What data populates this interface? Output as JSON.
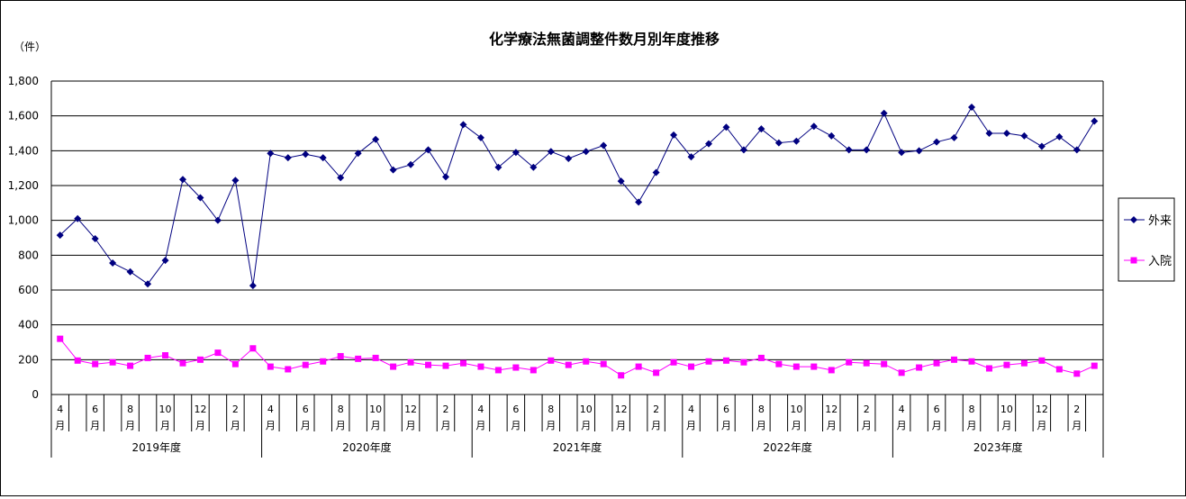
{
  "chart_data": {
    "type": "line",
    "title": "化学療法無菌調整件数月別年度推移",
    "ylabel": "（件）",
    "xlabel": "",
    "ylim": [
      0,
      1800
    ],
    "yticks": [
      "0",
      "200",
      "400",
      "600",
      "800",
      "1,000",
      "1,200",
      "1,400",
      "1,600",
      "1,800"
    ],
    "grid": true,
    "legend_position": "right",
    "month_ticks": [
      "4月",
      "",
      "6月",
      "",
      "8月",
      "",
      "10月",
      "",
      "12月",
      "",
      "2月",
      ""
    ],
    "fiscal_years": [
      "2019年度",
      "2020年度",
      "2021年度",
      "2022年度",
      "2023年度"
    ],
    "months_per_year": 12,
    "series": [
      {
        "name": "外来",
        "color": "#000080",
        "marker": "diamond",
        "values": [
          915,
          1010,
          895,
          755,
          705,
          635,
          770,
          1235,
          1130,
          1000,
          1230,
          625,
          1385,
          1360,
          1380,
          1360,
          1245,
          1385,
          1465,
          1290,
          1320,
          1405,
          1250,
          1550,
          1475,
          1305,
          1390,
          1305,
          1395,
          1355,
          1395,
          1430,
          1225,
          1105,
          1275,
          1490,
          1365,
          1440,
          1535,
          1405,
          1525,
          1445,
          1455,
          1540,
          1485,
          1405,
          1405,
          1615,
          1390,
          1400,
          1450,
          1475,
          1650,
          1500,
          1500,
          1485,
          1425,
          1480,
          1405,
          1570
        ]
      },
      {
        "name": "入院",
        "color": "#ff00ff",
        "marker": "square",
        "values": [
          320,
          195,
          175,
          185,
          165,
          210,
          225,
          180,
          200,
          240,
          175,
          265,
          160,
          145,
          170,
          190,
          220,
          205,
          210,
          160,
          185,
          170,
          165,
          180,
          160,
          140,
          155,
          140,
          195,
          170,
          190,
          175,
          110,
          160,
          125,
          185,
          160,
          190,
          195,
          185,
          210,
          175,
          160,
          160,
          140,
          185,
          180,
          175,
          125,
          155,
          180,
          200,
          190,
          150,
          170,
          180,
          195,
          145,
          120,
          165
        ]
      }
    ]
  }
}
